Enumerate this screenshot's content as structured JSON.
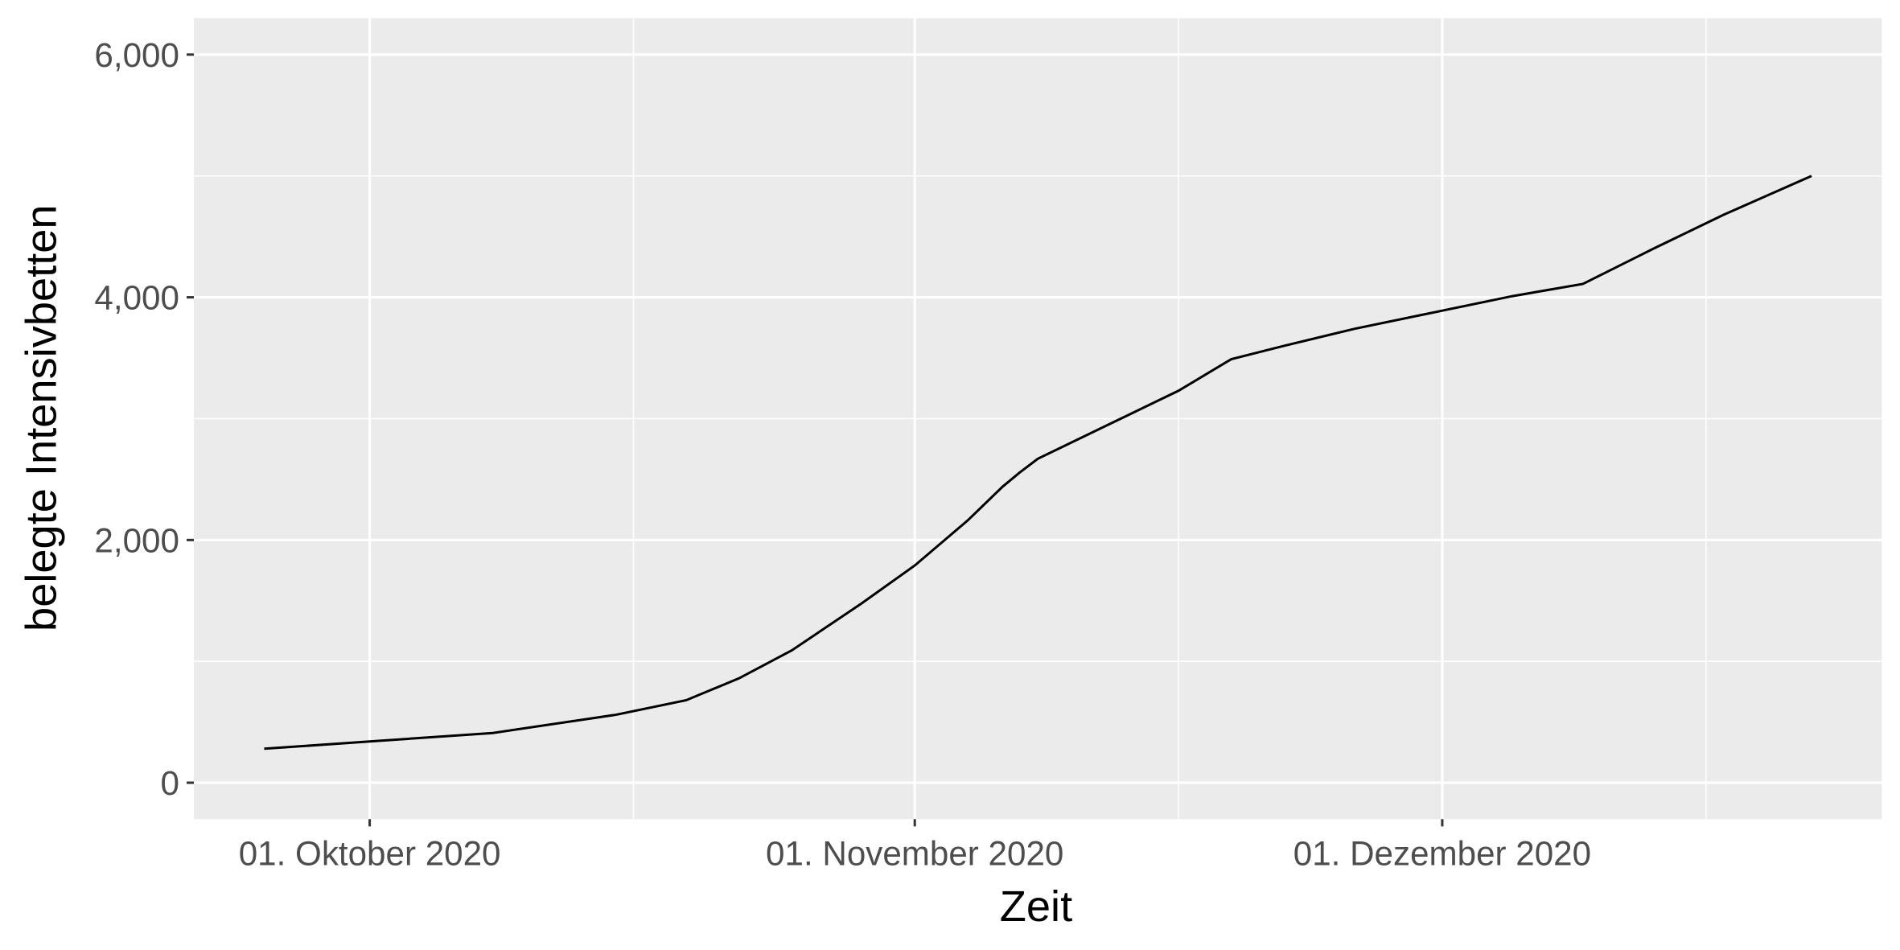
{
  "chart_data": {
    "type": "line",
    "x_label": "Zeit",
    "y_label": "belegte Intensivbetten",
    "x": [
      "2020-09-25",
      "2020-10-01",
      "2020-10-08",
      "2020-10-15",
      "2020-10-19",
      "2020-10-22",
      "2020-10-25",
      "2020-10-29",
      "2020-11-01",
      "2020-11-04",
      "2020-11-06",
      "2020-11-07",
      "2020-11-08",
      "2020-11-12",
      "2020-11-16",
      "2020-11-19",
      "2020-11-22",
      "2020-11-26",
      "2020-12-01",
      "2020-12-05",
      "2020-12-09",
      "2020-12-13",
      "2020-12-17",
      "2020-12-22"
    ],
    "series": [
      {
        "color": "#000000",
        "values": [
          280,
          340,
          410,
          560,
          680,
          860,
          1090,
          1480,
          1790,
          2160,
          2440,
          2560,
          2670,
          2950,
          3230,
          3490,
          3600,
          3740,
          3890,
          4010,
          4110,
          4400,
          4680,
          5000
        ]
      }
    ],
    "xlim": [
      "2020-09-21",
      "2020-12-26"
    ],
    "xticks": [
      {
        "value": "2020-10-01",
        "label": "01. Oktober 2020"
      },
      {
        "value": "2020-11-01",
        "label": "01. November 2020"
      },
      {
        "value": "2020-12-01",
        "label": "01. Dezember 2020"
      }
    ],
    "xminor": [
      "2020-10-16",
      "2020-11-16",
      "2020-12-16"
    ],
    "ylim": [
      -300,
      6300
    ],
    "yticks": [
      0,
      {
        "value": 2000,
        "label": "2,000"
      },
      {
        "value": 4000,
        "label": "4,000"
      },
      {
        "value": 6000,
        "label": "6,000"
      }
    ],
    "yminor": [
      1000,
      3000,
      5000
    ],
    "grid": true,
    "panel_color": "#ebebeb"
  }
}
